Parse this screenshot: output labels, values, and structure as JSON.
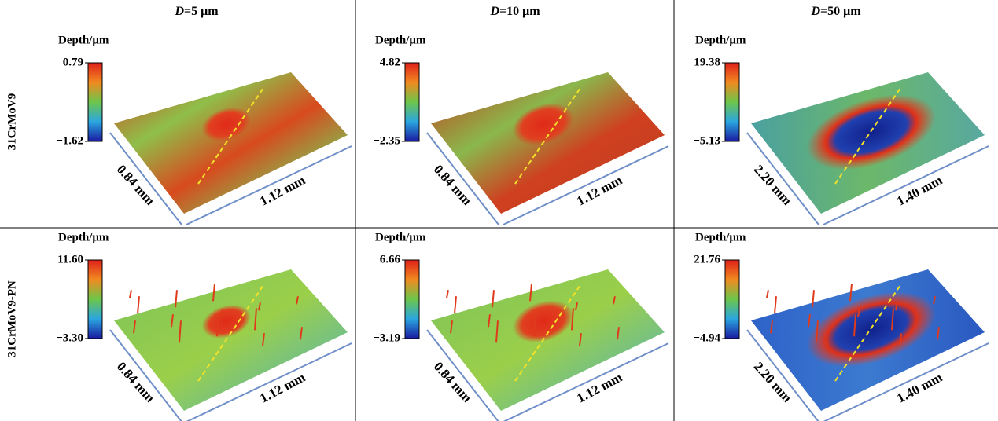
{
  "columns": [
    {
      "var": "D",
      "text": "=5 μm"
    },
    {
      "var": "D",
      "text": "=10 μm"
    },
    {
      "var": "D",
      "text": "=50 μm"
    }
  ],
  "rows": [
    "31CrMoV9",
    "31CrMoV9-PN"
  ],
  "panels": [
    {
      "label": "Depth/μm",
      "max": "0.79",
      "min": "−1.62",
      "dims": [
        "0.84 mm",
        "1.12 mm"
      ]
    },
    {
      "label": "Depth/μm",
      "max": "4.82",
      "min": "−2.35",
      "dims": [
        "0.84 mm",
        "1.12 mm"
      ]
    },
    {
      "label": "Depth/μm",
      "max": "19.38",
      "min": "−5.13",
      "dims": [
        "2.20 mm",
        "1.40 mm"
      ]
    },
    {
      "label": "Depth/μm",
      "max": "11.60",
      "min": "−3.30",
      "dims": [
        "0.84 mm",
        "1.12 mm"
      ]
    },
    {
      "label": "Depth/μm",
      "max": "6.66",
      "min": "−3.19",
      "dims": [
        "0.84 mm",
        "1.12 mm"
      ]
    },
    {
      "label": "Depth/μm",
      "max": "21.76",
      "min": "−4.94",
      "dims": [
        "2.20 mm",
        "1.40 mm"
      ]
    }
  ]
}
